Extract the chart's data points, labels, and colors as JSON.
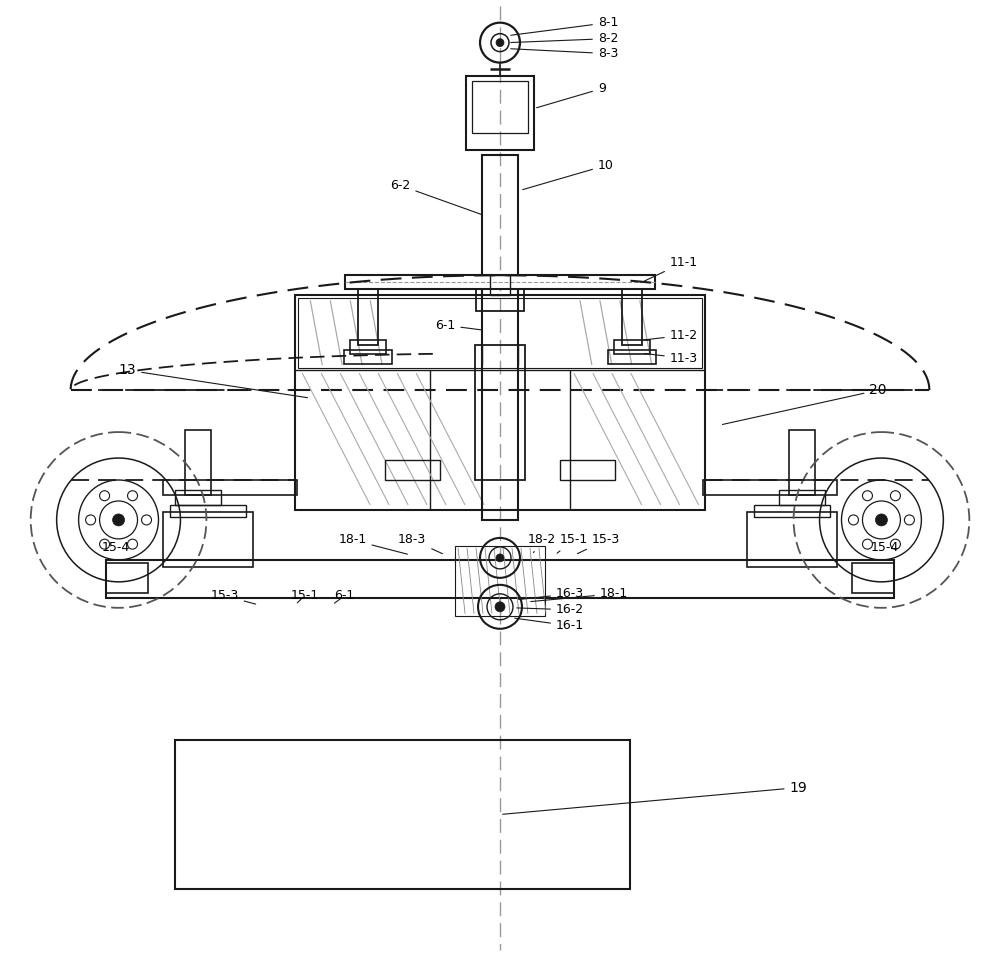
{
  "bg_color": "#ffffff",
  "lc": "#1a1a1a",
  "figsize": [
    10.0,
    9.56
  ],
  "dpi": 100
}
